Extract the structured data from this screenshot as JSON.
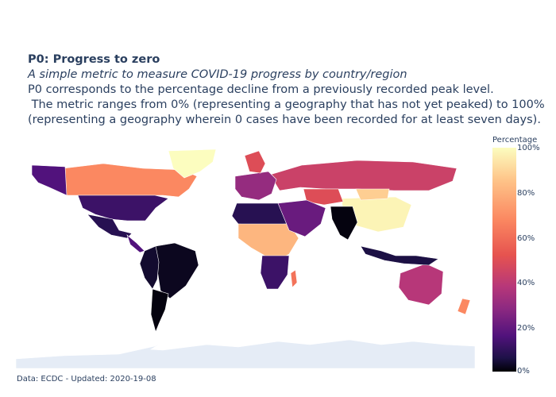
{
  "title": {
    "heading": "P0: Progress to zero",
    "subtitle": "A simple metric to measure COVID-19 progress by country/region",
    "line1": "P0 corresponds to the percentage decline from a previously recorded peak level.",
    "line2": " The metric ranges from 0% (representing a geography that has not yet peaked) to 100%",
    "line3": "(representing a geography wherein 0 cases have been recorded for at least seven days)."
  },
  "colorbar": {
    "title": "Percentage",
    "ticks": [
      "100%",
      "80%",
      "60%",
      "40%",
      "20%",
      "0%"
    ]
  },
  "footer": "Data: ECDC - Updated: 2020-19-08",
  "colors": {
    "text": "#2a3f5f",
    "ocean_antarctica": "#e5ecf6",
    "scale": [
      "#000004",
      "#1d1147",
      "#51127c",
      "#8c2981",
      "#b73779",
      "#e6534f",
      "#fb8861",
      "#fec287",
      "#fcfdbf"
    ]
  },
  "map_data": [
    {
      "region": "Canada",
      "value": 75
    },
    {
      "region": "Greenland",
      "value": 100
    },
    {
      "region": "Alaska",
      "value": 25
    },
    {
      "region": "United States",
      "value": 20
    },
    {
      "region": "Mexico",
      "value": 15
    },
    {
      "region": "Central America",
      "value": 25
    },
    {
      "region": "Brazil",
      "value": 5
    },
    {
      "region": "Andean countries",
      "value": 8
    },
    {
      "region": "Argentina",
      "value": 2
    },
    {
      "region": "Russia",
      "value": 55
    },
    {
      "region": "China",
      "value": 98
    },
    {
      "region": "Mongolia",
      "value": 90
    },
    {
      "region": "India",
      "value": 2
    },
    {
      "region": "Australia",
      "value": 50
    },
    {
      "region": "Indonesia",
      "value": 12
    },
    {
      "region": "Northern Africa",
      "value": 15
    },
    {
      "region": "Central Africa",
      "value": 85
    },
    {
      "region": "Southern Africa",
      "value": 20
    },
    {
      "region": "Madagascar",
      "value": 70
    },
    {
      "region": "Kazakhstan",
      "value": 60
    },
    {
      "region": "Middle East",
      "value": 30
    },
    {
      "region": "Europe",
      "value": 40
    },
    {
      "region": "Scandinavia",
      "value": 60
    },
    {
      "region": "New Zealand",
      "value": 75
    }
  ]
}
